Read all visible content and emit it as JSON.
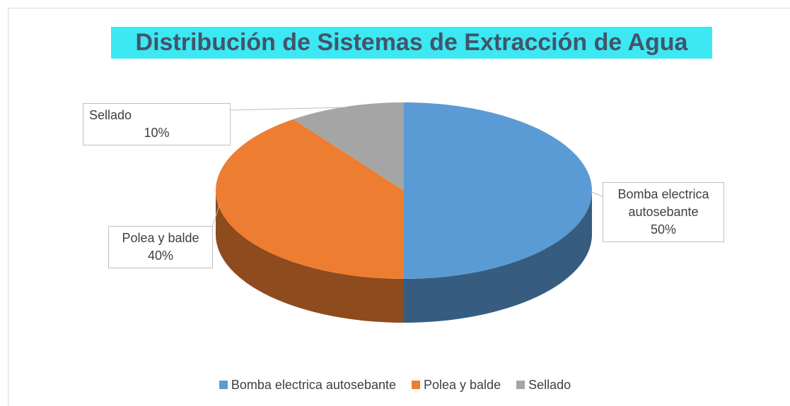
{
  "chart_data": {
    "type": "pie",
    "title": "Distribución de Sistemas de Extracción de Agua",
    "categories": [
      "Bomba electrica autosebante",
      "Polea y balde",
      "Sellado"
    ],
    "values": [
      50,
      40,
      10
    ],
    "value_labels": [
      "50%",
      "40%",
      "10%"
    ],
    "colors": [
      "#5b9bd5",
      "#ed7d31",
      "#a5a5a5"
    ],
    "legend": "bottom"
  }
}
